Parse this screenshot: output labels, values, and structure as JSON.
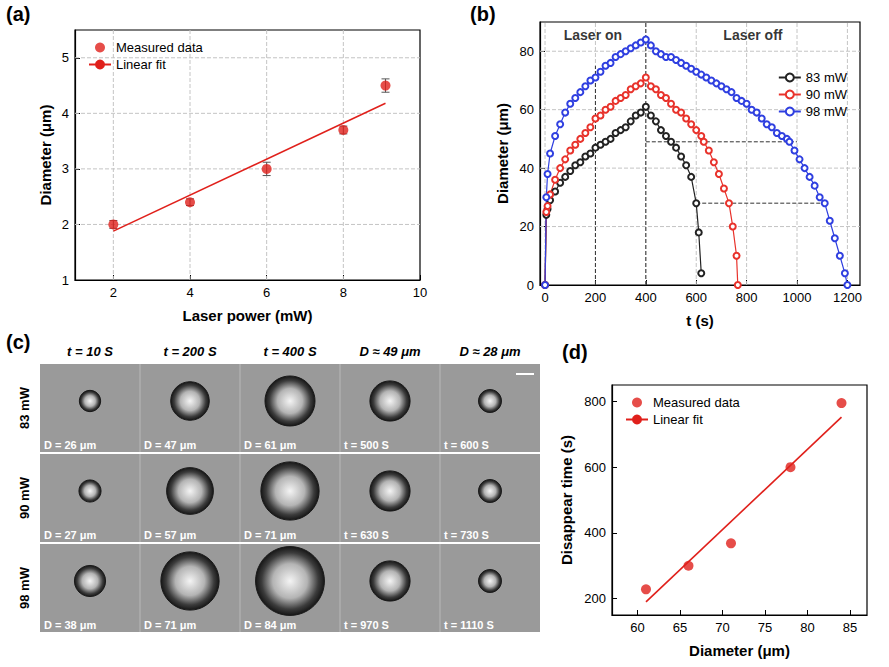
{
  "chart_data": [
    {
      "title": "(a)",
      "type": "scatter",
      "xlabel": "Laser power (mW)",
      "ylabel": "Diameter (μm)",
      "xlim": [
        1,
        10
      ],
      "ylim": [
        1,
        5.5
      ],
      "xticks": [
        2,
        4,
        6,
        8,
        10
      ],
      "yticks": [
        1,
        2,
        3,
        4,
        5
      ],
      "grid": true,
      "legend": "top-left",
      "series": [
        {
          "name": "Measured data",
          "type": "scatter",
          "marker": "circle",
          "color": "#e0201b",
          "x": [
            2,
            4,
            6,
            8,
            9.1
          ],
          "values": [
            2.0,
            2.4,
            3.0,
            3.7,
            4.5
          ],
          "errors": [
            0.07,
            0.06,
            0.12,
            0.07,
            0.12
          ]
        },
        {
          "name": "Linear fit",
          "type": "line",
          "line_style": "solid",
          "color": "#e0201b",
          "x": [
            2,
            9.1
          ],
          "values": [
            1.88,
            4.18
          ]
        }
      ]
    },
    {
      "title": "(b)",
      "type": "line",
      "xlabel": "t (s)",
      "ylabel": "Diameter (μm)",
      "xlim": [
        -20,
        1250
      ],
      "ylim": [
        0,
        90
      ],
      "xticks": [
        0,
        200,
        400,
        600,
        800,
        1000,
        1200
      ],
      "yticks": [
        0,
        20,
        40,
        60,
        80
      ],
      "grid": true,
      "legend": "top-right",
      "annotations": [
        "Laser on",
        "Laser off"
      ],
      "vlines": [
        {
          "x": 200,
          "y": [
            0,
            75
          ]
        },
        {
          "x": 400,
          "y": [
            0,
            90
          ]
        }
      ],
      "hlines": [
        {
          "y": 49,
          "x": [
            400,
            1000
          ]
        },
        {
          "y": 28,
          "x": [
            600,
            1110
          ]
        }
      ],
      "series": [
        {
          "name": "83 mW",
          "marker": "circle_open",
          "line_style": "solid",
          "color": "#222222",
          "x": [
            0,
            5,
            10,
            20,
            40,
            60,
            80,
            100,
            120,
            140,
            160,
            180,
            200,
            220,
            240,
            260,
            280,
            300,
            320,
            340,
            360,
            380,
            400,
            420,
            440,
            460,
            480,
            500,
            520,
            540,
            560,
            580,
            600,
            610,
            620
          ],
          "values": [
            0,
            24,
            26,
            29,
            32,
            35,
            37,
            39,
            41,
            42,
            44,
            45,
            47,
            48,
            49,
            50,
            52,
            53,
            54,
            56,
            58,
            59,
            61,
            58,
            56,
            53,
            51,
            49,
            47,
            44,
            41,
            37,
            28,
            18,
            4
          ]
        },
        {
          "name": "90 mW",
          "marker": "circle_open",
          "line_style": "solid",
          "color": "#e8322b",
          "x": [
            0,
            5,
            10,
            20,
            40,
            60,
            80,
            100,
            120,
            140,
            160,
            180,
            200,
            220,
            240,
            260,
            280,
            300,
            320,
            340,
            360,
            380,
            400,
            420,
            440,
            460,
            480,
            500,
            520,
            540,
            560,
            580,
            600,
            620,
            630,
            650,
            670,
            690,
            710,
            730,
            745,
            760,
            765
          ],
          "values": [
            0,
            25,
            27,
            31,
            36,
            40,
            43,
            46,
            48,
            50,
            52,
            54,
            57,
            58,
            60,
            61,
            63,
            64,
            65,
            67,
            68,
            69,
            71,
            68,
            67,
            65,
            64,
            62,
            60,
            59,
            57,
            55,
            53,
            51,
            49,
            46,
            42,
            38,
            33,
            28,
            20,
            10,
            0
          ]
        },
        {
          "name": "98 mW",
          "marker": "circle_open",
          "line_style": "solid",
          "color": "#2f3fe0",
          "x": [
            0,
            5,
            10,
            20,
            40,
            60,
            80,
            100,
            120,
            140,
            160,
            180,
            200,
            220,
            240,
            260,
            280,
            300,
            320,
            340,
            360,
            380,
            400,
            420,
            440,
            460,
            480,
            500,
            520,
            540,
            560,
            580,
            600,
            620,
            640,
            660,
            680,
            700,
            720,
            740,
            760,
            780,
            800,
            820,
            840,
            860,
            880,
            900,
            920,
            940,
            960,
            970,
            990,
            1010,
            1030,
            1050,
            1070,
            1090,
            1110,
            1130,
            1150,
            1170,
            1190,
            1200
          ],
          "values": [
            0,
            30,
            38,
            45,
            51,
            55,
            59,
            62,
            64,
            66,
            68,
            70,
            71,
            73,
            75,
            76,
            78,
            79,
            80,
            81,
            82,
            83,
            84,
            82,
            80,
            79,
            78,
            78,
            77,
            76,
            75,
            74,
            73,
            72,
            71,
            70,
            69,
            68,
            67,
            66,
            64,
            63,
            62,
            60,
            59,
            57,
            55,
            54,
            52,
            51,
            50,
            49,
            46,
            43,
            40,
            37,
            34,
            30,
            28,
            22,
            16,
            10,
            4,
            0
          ]
        }
      ]
    },
    {
      "title": "(d)",
      "type": "scatter",
      "xlabel": "Diameter (μm)",
      "ylabel": "Disappear time (s)",
      "xlim": [
        57,
        87
      ],
      "ylim": [
        150,
        850
      ],
      "xticks": [
        60,
        65,
        70,
        75,
        80,
        85
      ],
      "yticks": [
        200,
        400,
        600,
        800
      ],
      "grid": false,
      "legend": "top-left",
      "series": [
        {
          "name": "Measured data",
          "type": "scatter",
          "marker": "circle",
          "color": "#e0201b",
          "x": [
            61,
            66,
            71,
            78,
            84
          ],
          "values": [
            228,
            300,
            368,
            600,
            795
          ]
        },
        {
          "name": "Linear fit",
          "type": "line",
          "line_style": "solid",
          "color": "#e0201b",
          "x": [
            61,
            84
          ],
          "values": [
            190,
            752
          ]
        }
      ]
    }
  ],
  "image_panel": {
    "title": "(c)",
    "columns": [
      "t = 10 S",
      "t = 200 S",
      "t = 400 S",
      "D ≈ 49 μm",
      "D ≈ 28 μm"
    ],
    "rows": [
      {
        "label": "83 mW",
        "cells": [
          {
            "text": "D = 26 μm",
            "diameter": 26
          },
          {
            "text": "D = 47 μm",
            "diameter": 47
          },
          {
            "text": "D = 61 μm",
            "diameter": 61
          },
          {
            "text": "t = 500 S",
            "diameter": 49
          },
          {
            "text": "t = 600 S",
            "diameter": 28
          }
        ]
      },
      {
        "label": "90 mW",
        "cells": [
          {
            "text": "D = 27 μm",
            "diameter": 27
          },
          {
            "text": "D = 57 μm",
            "diameter": 57
          },
          {
            "text": "D = 71 μm",
            "diameter": 71
          },
          {
            "text": "t = 630 S",
            "diameter": 49
          },
          {
            "text": "t = 730 S",
            "diameter": 28
          }
        ]
      },
      {
        "label": "98 mW",
        "cells": [
          {
            "text": "D = 38 μm",
            "diameter": 38
          },
          {
            "text": "D = 71 μm",
            "diameter": 71
          },
          {
            "text": "D = 84 μm",
            "diameter": 84
          },
          {
            "text": "t = 970 S",
            "diameter": 49
          },
          {
            "text": "t = 1110 S",
            "diameter": 28
          }
        ]
      }
    ]
  }
}
